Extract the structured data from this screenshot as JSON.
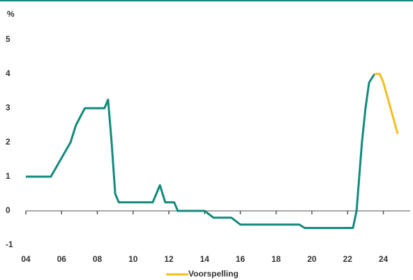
{
  "chart_data": {
    "type": "line",
    "y_label": "%",
    "xlim": [
      2004,
      2025.5
    ],
    "ylim": [
      -1,
      5.4
    ],
    "yticks": [
      -1,
      0,
      1,
      2,
      3,
      4,
      5
    ],
    "xticks": [
      {
        "value": 2004,
        "label": "04"
      },
      {
        "value": 2006,
        "label": "06"
      },
      {
        "value": 2008,
        "label": "08"
      },
      {
        "value": 2010,
        "label": "10"
      },
      {
        "value": 2012,
        "label": "12"
      },
      {
        "value": 2014,
        "label": "14"
      },
      {
        "value": 2016,
        "label": "16"
      },
      {
        "value": 2018,
        "label": "18"
      },
      {
        "value": 2020,
        "label": "20"
      },
      {
        "value": 2022,
        "label": "22"
      },
      {
        "value": 2024,
        "label": "24"
      }
    ],
    "grid": false,
    "legend": "bottom",
    "series": [
      {
        "color": "#138a7d",
        "x": [
          2004,
          2005.4,
          2006.5,
          2006.8,
          2007.3,
          2008.4,
          2008.6,
          2008.8,
          2009.0,
          2009.2,
          2011.1,
          2011.5,
          2011.8,
          2012.3,
          2012.5,
          2014.0,
          2014.5,
          2015.5,
          2016.0,
          2019.3,
          2019.6,
          2022.3,
          2022.5,
          2022.8,
          2023.0,
          2023.2,
          2023.5
        ],
        "values": [
          1,
          1,
          2,
          2.5,
          3,
          3,
          3.25,
          2,
          0.5,
          0.25,
          0.25,
          0.75,
          0.25,
          0.25,
          0,
          0,
          -0.2,
          -0.2,
          -0.4,
          -0.4,
          -0.5,
          -0.5,
          0,
          2,
          3,
          3.75,
          4
        ]
      },
      {
        "name": "Voorspelling",
        "color": "#f5bd1f",
        "x": [
          2023.5,
          2023.8,
          2024.0,
          2024.8
        ],
        "values": [
          4,
          4,
          3.75,
          2.25
        ]
      }
    ]
  }
}
